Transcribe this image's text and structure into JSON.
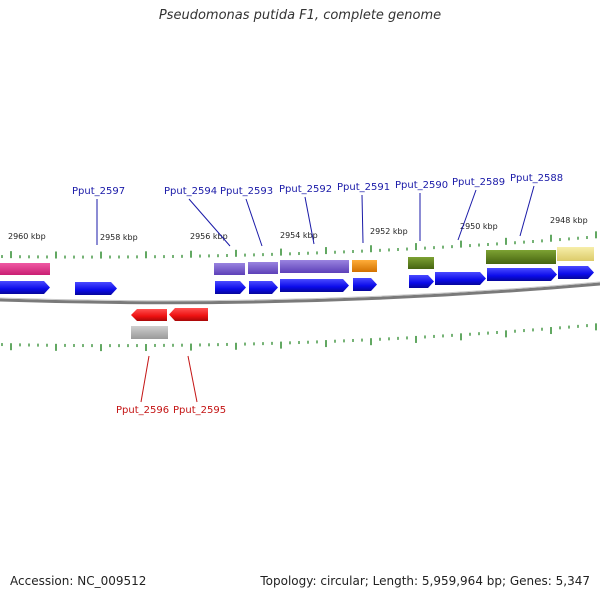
{
  "title": "Pseudomonas putida F1, complete genome",
  "footer": {
    "accession": "Accession: NC_009512",
    "topology": "Topology: circular; Length: 5,959,964 bp; Genes: 5,347"
  },
  "kbp_labels": [
    "2960 kbp",
    "2958 kbp",
    "2956 kbp",
    "2954 kbp",
    "2952 kbp",
    "2950 kbp",
    "2948 kbp"
  ],
  "gene_labels": [
    "Pput_2597",
    "Pput_2594",
    "Pput_2593",
    "Pput_2592",
    "Pput_2591",
    "Pput_2590",
    "Pput_2589",
    "Pput_2588",
    "Pput_2596",
    "Pput_2595"
  ],
  "colors": {
    "forward_gene": "#1010ee",
    "reverse_gene": "#ee1111",
    "forward_label": "#1a1aa8",
    "reverse_label": "#c41414",
    "tick": "#2d8a2d",
    "backbone": "#888888",
    "category_magenta": "#e8388e",
    "category_purple": "#7c5ed0",
    "category_orange": "#f08a00",
    "category_olive": "#5b7f17",
    "category_khaki": "#efe08a",
    "category_gray": "#b0b0b0"
  }
}
